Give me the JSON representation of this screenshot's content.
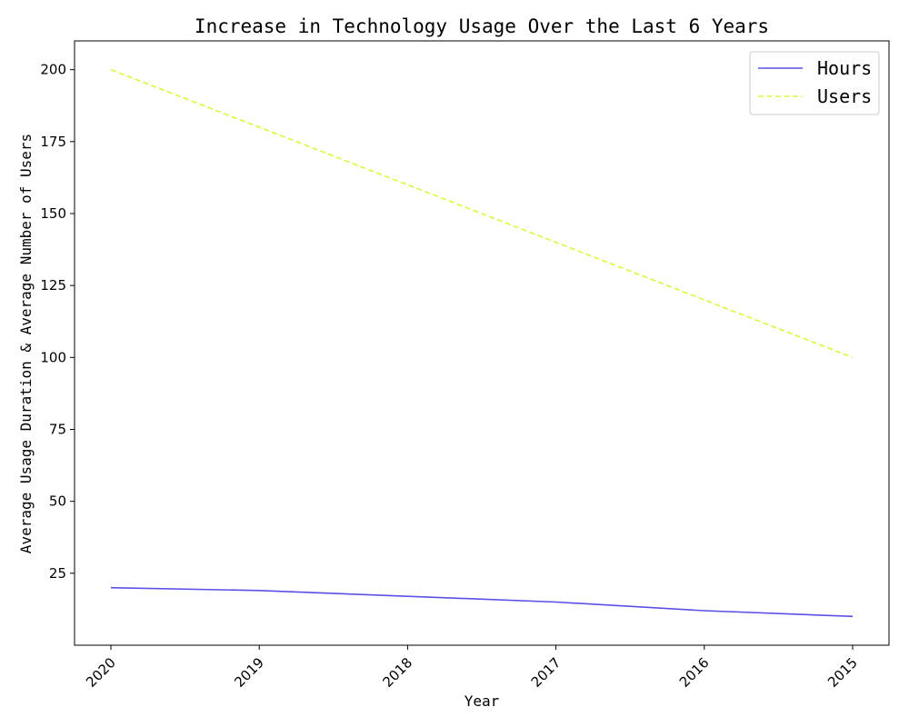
{
  "chart_data": {
    "type": "line",
    "title": "Increase in Technology Usage Over the Last 6 Years",
    "xlabel": "Year",
    "ylabel": "Average Usage Duration & Average Number of Users",
    "categories": [
      "2020",
      "2019",
      "2018",
      "2017",
      "2016",
      "2015"
    ],
    "series": [
      {
        "name": "Hours",
        "values": [
          20,
          19,
          17,
          15,
          12,
          10
        ],
        "color": "#5a50e6",
        "style": "solid"
      },
      {
        "name": "Users",
        "values": [
          200,
          180,
          160,
          140,
          120,
          100
        ],
        "color": "#ddf53a",
        "style": "dashed"
      }
    ],
    "ylim": [
      0,
      210
    ],
    "yticks": [
      25,
      50,
      75,
      100,
      125,
      150,
      175,
      200
    ],
    "grid": false,
    "legend_position": "top-right"
  }
}
